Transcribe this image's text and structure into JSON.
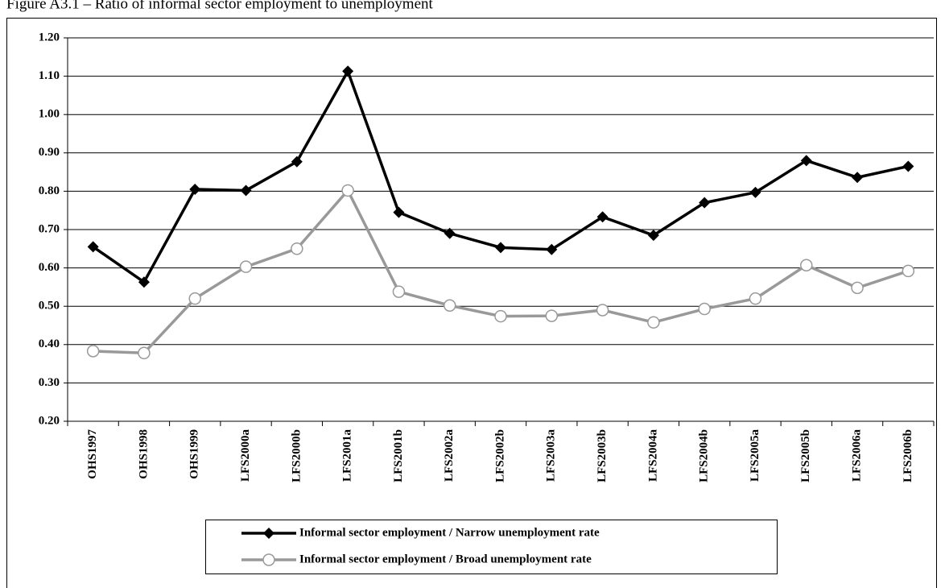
{
  "chart_data": {
    "type": "line",
    "title": "Figure A3.1 – Ratio of informal sector employment to unemployment",
    "categories": [
      "OHS1997",
      "OHS1998",
      "OHS1999",
      "LFS2000a",
      "LFS2000b",
      "LFS2001a",
      "LFS2001b",
      "LFS2002a",
      "LFS2002b",
      "LFS2003a",
      "LFS2003b",
      "LFS2004a",
      "LFS2004b",
      "LFS2005a",
      "LFS2005b",
      "LFS2006a",
      "LFS2006b"
    ],
    "series": [
      {
        "name": "Informal sector employment / Narrow unemployment rate",
        "color": "#000000",
        "marker": "diamond",
        "values": [
          0.655,
          0.563,
          0.805,
          0.802,
          0.877,
          1.113,
          0.745,
          0.69,
          0.653,
          0.648,
          0.733,
          0.685,
          0.77,
          0.797,
          0.88,
          0.836,
          0.865
        ]
      },
      {
        "name": "Informal sector employment / Broad unemployment rate",
        "color": "#999999",
        "marker": "circle",
        "values": [
          0.383,
          0.378,
          0.52,
          0.603,
          0.65,
          0.802,
          0.538,
          0.502,
          0.474,
          0.475,
          0.49,
          0.458,
          0.493,
          0.52,
          0.607,
          0.548,
          0.592
        ]
      }
    ],
    "ylim": [
      0.2,
      1.2
    ],
    "yticks": [
      {
        "value": 0.2,
        "label": "0.20"
      },
      {
        "value": 0.3,
        "label": "0.30"
      },
      {
        "value": 0.4,
        "label": "0.40"
      },
      {
        "value": 0.5,
        "label": "0.50"
      },
      {
        "value": 0.6,
        "label": "0.60"
      },
      {
        "value": 0.7,
        "label": "0.70"
      },
      {
        "value": 0.8,
        "label": "0.80"
      },
      {
        "value": 0.9,
        "label": "0.90"
      },
      {
        "value": 1.0,
        "label": "1.00"
      },
      {
        "value": 1.1,
        "label": "1.10"
      },
      {
        "value": 1.2,
        "label": "1.20"
      }
    ],
    "grid": true,
    "legend": "bottom"
  }
}
